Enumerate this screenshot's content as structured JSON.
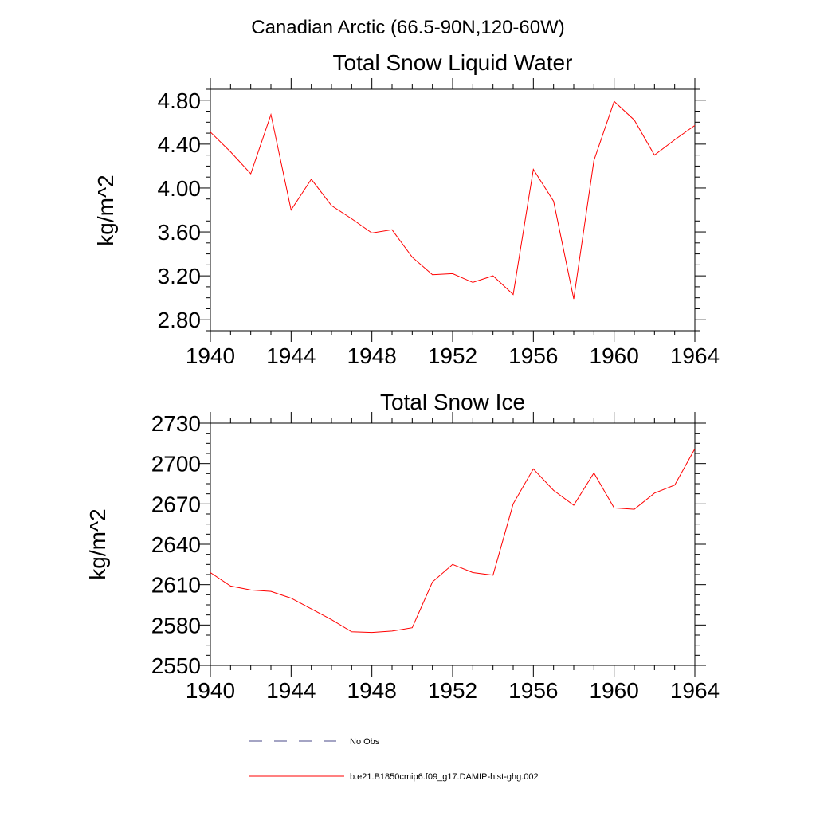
{
  "suptitle": "Canadian Arctic (66.5-90N,120-60W)",
  "colors": {
    "model_line": "#ff0000",
    "obs_line": "#4a4a8a",
    "axes": "#000000"
  },
  "legend": [
    {
      "label": "No Obs",
      "style": "dashed"
    },
    {
      "label": "b.e21.B1850cmip6.f09_g17.DAMIP-hist-ghg.002",
      "style": "solid"
    }
  ],
  "chart_data": [
    {
      "type": "line",
      "title": "Total Snow Liquid Water",
      "xlabel": "",
      "ylabel": "kg/m^2",
      "xlim": [
        1940,
        1964
      ],
      "ylim": [
        2.7,
        4.9
      ],
      "xticks": [
        1940,
        1944,
        1948,
        1952,
        1956,
        1960,
        1964
      ],
      "yticks": [
        2.8,
        3.2,
        3.6,
        4.0,
        4.4,
        4.8
      ],
      "ytick_labels": [
        "2.80",
        "3.20",
        "3.60",
        "4.00",
        "4.40",
        "4.80"
      ],
      "series": [
        {
          "name": "b.e21.B1850cmip6.f09_g17.DAMIP-hist-ghg.002",
          "x": [
            1940,
            1941,
            1942,
            1943,
            1944,
            1945,
            1946,
            1947,
            1948,
            1949,
            1950,
            1951,
            1952,
            1953,
            1954,
            1955,
            1956,
            1957,
            1958,
            1959,
            1960,
            1961,
            1962,
            1963,
            1964
          ],
          "y": [
            4.51,
            4.33,
            4.13,
            4.67,
            3.8,
            4.08,
            3.84,
            3.72,
            3.59,
            3.62,
            3.37,
            3.21,
            3.22,
            3.14,
            3.2,
            3.03,
            4.17,
            3.88,
            2.99,
            4.25,
            4.79,
            4.62,
            4.3,
            4.44,
            4.57
          ]
        }
      ]
    },
    {
      "type": "line",
      "title": "Total Snow Ice",
      "xlabel": "",
      "ylabel": "kg/m^2",
      "xlim": [
        1940,
        1964
      ],
      "ylim": [
        2550,
        2730
      ],
      "xticks": [
        1940,
        1944,
        1948,
        1952,
        1956,
        1960,
        1964
      ],
      "yticks": [
        2550,
        2580,
        2610,
        2640,
        2670,
        2700,
        2730
      ],
      "ytick_labels": [
        "2550",
        "2580",
        "2610",
        "2640",
        "2670",
        "2700",
        "2730"
      ],
      "series": [
        {
          "name": "b.e21.B1850cmip6.f09_g17.DAMIP-hist-ghg.002",
          "x": [
            1940,
            1941,
            1942,
            1943,
            1944,
            1945,
            1946,
            1947,
            1948,
            1949,
            1950,
            1951,
            1952,
            1953,
            1954,
            1955,
            1956,
            1957,
            1958,
            1959,
            1960,
            1961,
            1962,
            1963,
            1964
          ],
          "y": [
            2619,
            2609,
            2606,
            2605,
            2600,
            2592,
            2584,
            2575,
            2574.5,
            2575.5,
            2578,
            2612,
            2625,
            2619,
            2617,
            2670,
            2696,
            2680,
            2669,
            2693,
            2667,
            2666,
            2678,
            2684,
            2711
          ]
        }
      ]
    }
  ]
}
